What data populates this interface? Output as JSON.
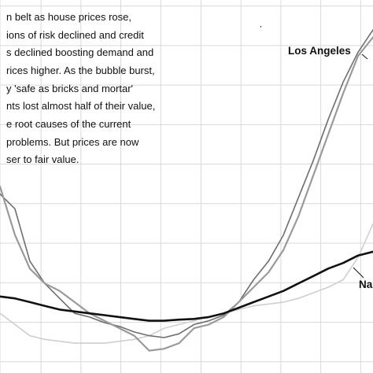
{
  "annotation": {
    "lines": [
      "n belt as house prices rose,",
      "ions of risk declined and credit",
      "s declined boosting demand and",
      "rices higher. As the bubble burst,",
      "y 'safe as bricks and mortar'",
      "nts lost almost half of their value,",
      "e root causes of the current",
      "problems. But prices are now",
      "ser to fair value."
    ]
  },
  "stray_mark": ",",
  "chart_data": {
    "type": "line",
    "title": "",
    "xlabel": "",
    "ylabel": "",
    "grid": true,
    "xlim": [
      0,
      100
    ],
    "ylim": [
      0,
      100
    ],
    "x_ticks": [
      0,
      11,
      21.7,
      32.4,
      43.1,
      53.9,
      64.6,
      75.3,
      86,
      96.7
    ],
    "y_ticks": [
      3,
      13.6,
      24.2,
      34.8,
      45.4,
      56,
      66.6,
      77.2,
      87.8,
      98.4
    ],
    "x": [
      0,
      4,
      8,
      12,
      16,
      20,
      24,
      28,
      32,
      36,
      40,
      44,
      48,
      52,
      56,
      60,
      64,
      68,
      72,
      76,
      80,
      84,
      88,
      92,
      96,
      100
    ],
    "series": [
      {
        "name": "Los Angeles",
        "color": "#9a9a9a",
        "width": 2.2,
        "values": [
          50,
          37,
          28,
          24,
          22,
          19,
          16,
          14,
          12,
          10,
          6,
          6.5,
          8,
          12,
          13,
          15,
          19,
          23,
          27,
          33,
          42,
          53,
          64,
          75,
          85,
          90
        ]
      },
      {
        "name": "Na",
        "color": "#111111",
        "width": 2.6,
        "values": [
          20.5,
          20,
          19,
          18,
          17,
          16.5,
          16,
          15.5,
          15,
          14.5,
          14,
          14,
          14.3,
          14.5,
          15,
          16,
          17.5,
          19,
          20.5,
          22,
          24,
          26,
          28,
          29.5,
          31.5,
          32.5
        ]
      },
      {
        "name": "",
        "color": "#6e6e6e",
        "width": 1.6,
        "values": [
          48,
          44,
          30,
          24,
          20,
          16,
          15,
          13.5,
          12.5,
          11,
          10,
          9.5,
          10.5,
          13,
          14,
          15.5,
          19,
          25,
          30,
          37,
          47,
          57,
          68,
          78,
          86,
          92
        ]
      },
      {
        "name": "",
        "color": "#cfcfcf",
        "width": 1.6,
        "values": [
          16,
          13,
          10,
          9,
          8.5,
          8,
          8,
          8,
          8.5,
          9,
          10,
          12,
          13,
          14,
          15,
          16,
          17,
          18,
          18.5,
          19,
          20,
          21.5,
          23,
          25,
          31,
          40
        ]
      }
    ]
  }
}
